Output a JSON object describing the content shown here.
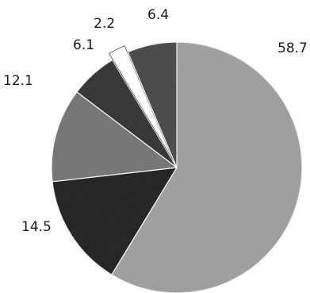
{
  "chart_data": {
    "type": "pie",
    "start_angle_deg": 0,
    "direction": "clockwise",
    "slices": [
      {
        "label": "58.7",
        "value": 58.7,
        "color": "#a6a6a6"
      },
      {
        "label": "14.5",
        "value": 14.5,
        "color": "#2a2a2a"
      },
      {
        "label": "12.1",
        "value": 12.1,
        "color": "#7c7c7c"
      },
      {
        "label": "6.1",
        "value": 6.1,
        "color": "#3a3a3a"
      },
      {
        "label": "2.2",
        "value": 2.2,
        "color": "#ffffff",
        "exploded": true
      },
      {
        "label": "6.4",
        "value": 6.4,
        "color": "#505050"
      }
    ]
  }
}
